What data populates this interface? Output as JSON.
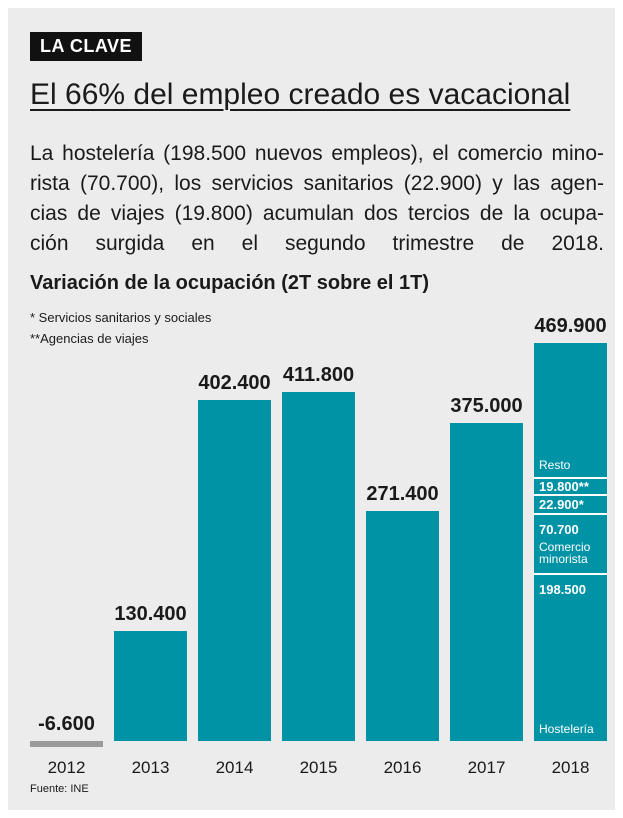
{
  "header": {
    "tag": "LA CLAVE",
    "title": "El 66% del empleo creado es vacacional",
    "lines": [
      "La hostelería (198.500 nuevos empleos), el comercio mino-",
      "rista (70.700), los servicios sanitarios (22.900) y las agen-",
      "cias de viajes (19.800) acumulan dos tercios de la ocupa-",
      "ción surgida en el segundo trimestre de 2018."
    ]
  },
  "chart_data": {
    "type": "bar",
    "title": "Variación de la ocupación (2T sobre el 1T)",
    "notes": [
      "* Servicios sanitarios y sociales",
      "**Agencias de viajes"
    ],
    "categories": [
      "2012",
      "2013",
      "2014",
      "2015",
      "2016",
      "2017",
      "2018"
    ],
    "values": [
      -6600,
      130400,
      402400,
      411800,
      271400,
      375000,
      469900
    ],
    "value_labels": [
      "-6.600",
      "130.400",
      "402.400",
      "411.800",
      "271.400",
      "375.000",
      "469.900"
    ],
    "color": "#0093a6",
    "negative_color": "#9a9a9a",
    "breakdown": [
      {
        "name": "Hostelería",
        "value": 198500,
        "value_label": "198.500"
      },
      {
        "name": "Comercio minorista",
        "value": 70700,
        "value_label": "70.700"
      },
      {
        "value": 22900,
        "value_label": "22.900*"
      },
      {
        "value": 19800,
        "value_label": "19.800**"
      },
      {
        "name": "Resto",
        "value": 158000
      }
    ],
    "source": "Fuente: INE"
  }
}
